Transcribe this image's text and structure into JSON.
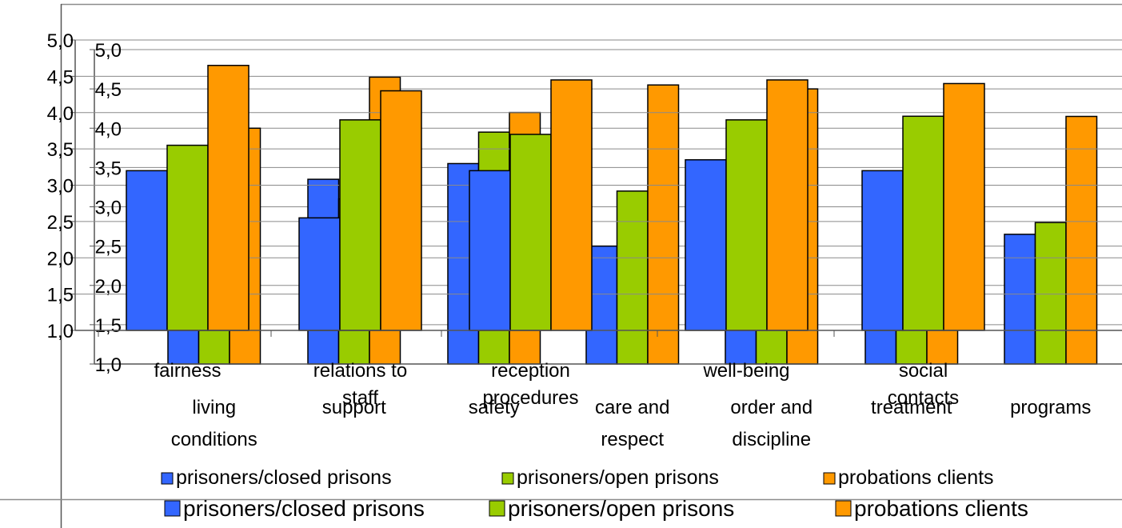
{
  "chart_data": [
    {
      "type": "bar",
      "categories": [
        "fairness",
        "relations to staff",
        "reception procedures",
        "well-being",
        "social contacts"
      ],
      "ylim": [
        1.0,
        5.0
      ],
      "yticks": [
        "1,0",
        "1,5",
        "2,0",
        "2,5",
        "3,0",
        "3,5",
        "4,0",
        "4,5",
        "5,0"
      ],
      "series": [
        {
          "name": "prisoners/closed prisons",
          "values": [
            3.2,
            2.55,
            3.2,
            3.35,
            3.2
          ]
        },
        {
          "name": "prisoners/open prisons",
          "values": [
            3.55,
            3.9,
            3.7,
            3.9,
            3.95
          ]
        },
        {
          "name": "probations clients",
          "values": [
            4.65,
            4.3,
            4.45,
            4.45,
            4.4
          ]
        }
      ],
      "legend_position": "bottom",
      "colors": {
        "closed": "#3366ff",
        "open": "#99cc00",
        "probation": "#ff9900"
      }
    },
    {
      "type": "bar",
      "categories": [
        "living conditions",
        "support",
        "safety",
        "care and respect",
        "order and discipline",
        "treatment",
        "programs"
      ],
      "ylim": [
        1.0,
        5.0
      ],
      "yticks": [
        "1,0",
        "1,5",
        "2,0",
        "2,5",
        "3,0",
        "3,5",
        "4,0",
        "4,5",
        "5,0"
      ],
      "series": [
        {
          "name": "prisoners/closed prisons",
          "values": [
            3.2,
            3.35,
            3.55,
            2.5,
            3.3,
            2.7,
            2.65
          ]
        },
        {
          "name": "prisoners/open prisons",
          "values": [
            3.6,
            3.1,
            3.95,
            3.2,
            3.6,
            3.35,
            2.8
          ]
        },
        {
          "name": "probations clients",
          "values": [
            4.0,
            4.65,
            4.2,
            4.55,
            4.5,
            3.65,
            4.15
          ]
        }
      ],
      "legend_position": "bottom",
      "colors": {
        "closed": "#3366ff",
        "open": "#99cc00",
        "probation": "#ff9900"
      }
    }
  ]
}
